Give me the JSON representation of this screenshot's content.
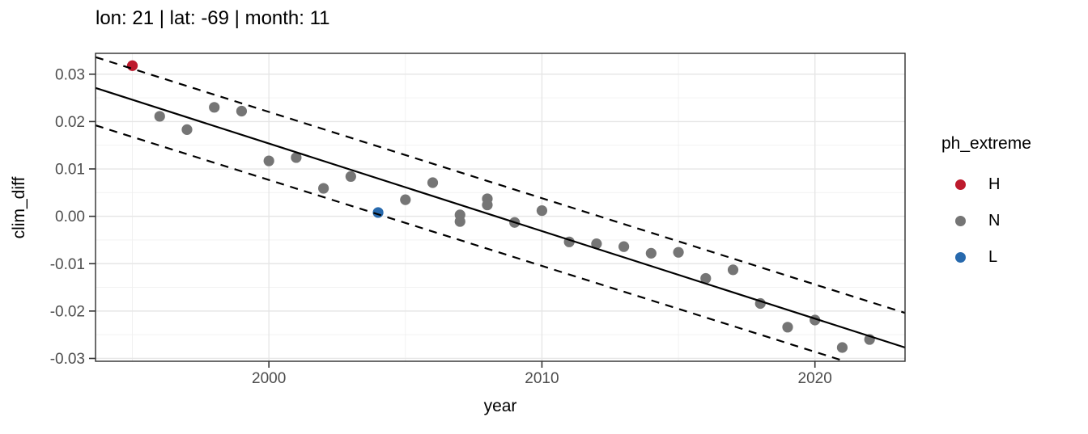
{
  "title": "lon: 21 | lat: -69 | month: 11",
  "axes": {
    "x": {
      "label": "year"
    },
    "y": {
      "label": "clim_diff"
    }
  },
  "legend": {
    "title": "ph_extreme",
    "items": [
      {
        "label": "H",
        "color": "#bd1a2d"
      },
      {
        "label": "N",
        "color": "#757575"
      },
      {
        "label": "L",
        "color": "#2769ad"
      }
    ]
  },
  "chart_data": {
    "type": "scatter",
    "title": "lon: 21 | lat: -69 | month: 11",
    "xlabel": "year",
    "ylabel": "clim_diff",
    "xlim": [
      1993.65,
      2023.3
    ],
    "ylim": [
      -0.0306,
      0.0344
    ],
    "grid": true,
    "legend_position": "right",
    "series_label": "ph_extreme",
    "colors": {
      "H": "#bd1a2d",
      "N": "#757575",
      "L": "#2769ad"
    },
    "x_tick_values": [
      2000,
      2010,
      2020
    ],
    "x_tick_labels": [
      "2000",
      "2010",
      "2020"
    ],
    "x_minor_gridlines": [
      1995,
      2005,
      2015
    ],
    "y_tick_values": [
      0.03,
      0.02,
      0.01,
      0,
      -0.01,
      -0.02,
      -0.03
    ],
    "y_tick_labels": [
      "0.03",
      "0.02",
      "0.01",
      "0.00",
      "-0.01",
      "-0.02",
      "-0.03"
    ],
    "y_minor_gridlines": [
      0.025,
      0.015,
      0.005,
      -0.005,
      -0.015,
      -0.025
    ],
    "points": [
      {
        "year": 1995,
        "clim_diff": 0.0318,
        "ph_extreme": "H"
      },
      {
        "year": 1996,
        "clim_diff": 0.0211,
        "ph_extreme": "N"
      },
      {
        "year": 1997,
        "clim_diff": 0.0183,
        "ph_extreme": "N"
      },
      {
        "year": 1998,
        "clim_diff": 0.023,
        "ph_extreme": "N"
      },
      {
        "year": 1999,
        "clim_diff": 0.0222,
        "ph_extreme": "N"
      },
      {
        "year": 2000,
        "clim_diff": 0.0117,
        "ph_extreme": "N"
      },
      {
        "year": 2001,
        "clim_diff": 0.0124,
        "ph_extreme": "N"
      },
      {
        "year": 2002,
        "clim_diff": 0.0059,
        "ph_extreme": "N"
      },
      {
        "year": 2003,
        "clim_diff": 0.0084,
        "ph_extreme": "N"
      },
      {
        "year": 2004,
        "clim_diff": 0.0008,
        "ph_extreme": "L"
      },
      {
        "year": 2005,
        "clim_diff": 0.0035,
        "ph_extreme": "N"
      },
      {
        "year": 2006,
        "clim_diff": 0.0071,
        "ph_extreme": "N"
      },
      {
        "year": 2007,
        "clim_diff": 0.0003,
        "ph_extreme": "N"
      },
      {
        "year": 2007,
        "clim_diff": -0.0011,
        "ph_extreme": "N"
      },
      {
        "year": 2008,
        "clim_diff": 0.0037,
        "ph_extreme": "N"
      },
      {
        "year": 2008,
        "clim_diff": 0.0024,
        "ph_extreme": "N"
      },
      {
        "year": 2009,
        "clim_diff": -0.0013,
        "ph_extreme": "N"
      },
      {
        "year": 2010,
        "clim_diff": 0.0012,
        "ph_extreme": "N"
      },
      {
        "year": 2011,
        "clim_diff": -0.0054,
        "ph_extreme": "N"
      },
      {
        "year": 2012,
        "clim_diff": -0.0058,
        "ph_extreme": "N"
      },
      {
        "year": 2013,
        "clim_diff": -0.0064,
        "ph_extreme": "N"
      },
      {
        "year": 2014,
        "clim_diff": -0.0078,
        "ph_extreme": "N"
      },
      {
        "year": 2015,
        "clim_diff": -0.0076,
        "ph_extreme": "N"
      },
      {
        "year": 2016,
        "clim_diff": -0.0131,
        "ph_extreme": "N"
      },
      {
        "year": 2017,
        "clim_diff": -0.0113,
        "ph_extreme": "N"
      },
      {
        "year": 2018,
        "clim_diff": -0.0184,
        "ph_extreme": "N"
      },
      {
        "year": 2019,
        "clim_diff": -0.0234,
        "ph_extreme": "N"
      },
      {
        "year": 2020,
        "clim_diff": -0.0219,
        "ph_extreme": "N"
      },
      {
        "year": 2021,
        "clim_diff": -0.0277,
        "ph_extreme": "N"
      },
      {
        "year": 2022,
        "clim_diff": -0.026,
        "ph_extreme": "N"
      }
    ],
    "lines": [
      {
        "name": "trend",
        "style": "solid",
        "x1": 1993.65,
        "y1": 0.0271,
        "x2": 2023.3,
        "y2": -0.0277
      },
      {
        "name": "upper-interval",
        "style": "dashed",
        "x1": 1993.65,
        "y1": 0.0336,
        "x2": 2023.3,
        "y2": -0.0204
      },
      {
        "name": "lower-interval",
        "style": "dashed",
        "x1": 1993.65,
        "y1": 0.0192,
        "x2": 2023.3,
        "y2": -0.0346
      }
    ]
  }
}
